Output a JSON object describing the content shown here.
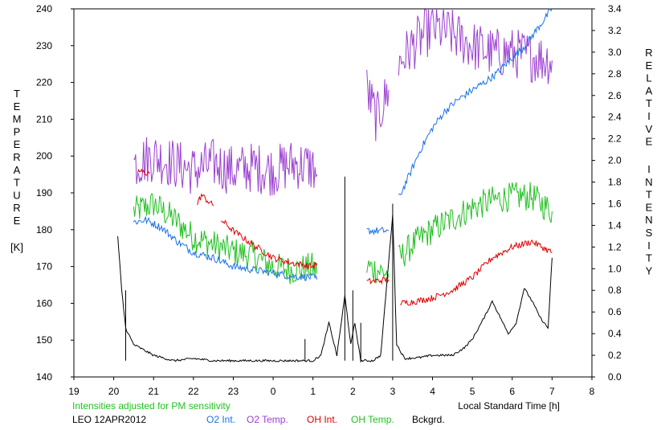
{
  "chart_data": {
    "type": "line",
    "left_axis_letters": [
      "T",
      "E",
      "M",
      "P",
      "E",
      "R",
      "A",
      "T",
      "U",
      "R",
      "E"
    ],
    "left_axis_unit": "[K]",
    "right_axis_letters": [
      "R",
      "E",
      "L",
      "A",
      "T",
      "I",
      "V",
      "E",
      "I",
      "N",
      "T",
      "E",
      "N",
      "S",
      "I",
      "T",
      "Y"
    ],
    "xlabel": "Local Standard Time [h]",
    "note": "Intensities adjusted for PM sensitivity",
    "station": "LEO 12APR2012",
    "xlim": [
      19,
      32
    ],
    "x_tick_values": [
      19,
      20,
      21,
      22,
      23,
      24,
      25,
      26,
      27,
      28,
      29,
      30,
      31,
      32
    ],
    "x_tick_labels": [
      "19",
      "20",
      "21",
      "22",
      "23",
      "0",
      "1",
      "2",
      "3",
      "4",
      "5",
      "6",
      "7",
      "8"
    ],
    "ylim_left": [
      140,
      240
    ],
    "y_left_ticks": [
      140,
      150,
      160,
      170,
      180,
      190,
      200,
      210,
      220,
      230,
      240
    ],
    "ylim_right": [
      0.0,
      3.4
    ],
    "y_right_ticks": [
      "0.0",
      "0.2",
      "0.4",
      "0.6",
      "0.8",
      "1.0",
      "1.2",
      "1.4",
      "1.6",
      "1.8",
      "2.0",
      "2.2",
      "2.4",
      "2.6",
      "2.8",
      "3.0",
      "3.2",
      "3.4"
    ],
    "colors": {
      "o2_int": "#1a73e8",
      "o2_temp": "#9b3fd0",
      "oh_int": "#e00000",
      "oh_temp": "#22c022",
      "bckgrd": "#000000",
      "note": "#22c022"
    },
    "series": [
      {
        "name": "O2 Int.",
        "axis": "right",
        "noise": 0.035,
        "segments": [
          [
            [
              20.5,
              1.43
            ],
            [
              20.8,
              1.45
            ],
            [
              21.2,
              1.38
            ],
            [
              21.6,
              1.25
            ],
            [
              22.0,
              1.15
            ],
            [
              22.5,
              1.1
            ],
            [
              23.0,
              1.02
            ],
            [
              23.5,
              0.99
            ],
            [
              24.0,
              0.96
            ],
            [
              24.5,
              0.93
            ],
            [
              25.0,
              0.92
            ],
            [
              25.1,
              0.9
            ]
          ],
          [
            [
              26.35,
              1.35
            ],
            [
              26.9,
              1.35
            ]
          ],
          [
            [
              27.15,
              1.65
            ],
            [
              27.4,
              1.85
            ],
            [
              27.7,
              2.1
            ],
            [
              28.0,
              2.3
            ],
            [
              28.3,
              2.45
            ],
            [
              28.6,
              2.55
            ],
            [
              29.0,
              2.65
            ],
            [
              29.3,
              2.72
            ],
            [
              29.6,
              2.8
            ],
            [
              30.0,
              2.95
            ],
            [
              30.3,
              3.05
            ],
            [
              30.6,
              3.2
            ],
            [
              30.9,
              3.35
            ],
            [
              31.0,
              3.4
            ]
          ]
        ]
      },
      {
        "name": "O2 Temp.",
        "axis": "left",
        "noise": 7,
        "segments": [
          [
            [
              20.5,
              198
            ],
            [
              21.0,
              200
            ],
            [
              21.5,
              198
            ],
            [
              22.0,
              196
            ],
            [
              22.5,
              198
            ],
            [
              23.0,
              196
            ],
            [
              23.5,
              197
            ],
            [
              24.0,
              196
            ],
            [
              24.5,
              198
            ],
            [
              25.0,
              197
            ],
            [
              25.1,
              195
            ]
          ],
          [
            [
              26.35,
              218
            ],
            [
              26.6,
              210
            ],
            [
              26.9,
              218
            ]
          ],
          [
            [
              27.15,
              225
            ],
            [
              27.5,
              230
            ],
            [
              28.0,
              235
            ],
            [
              28.5,
              233
            ],
            [
              29.0,
              230
            ],
            [
              29.5,
              228
            ],
            [
              30.0,
              228
            ],
            [
              30.5,
              227
            ],
            [
              31.0,
              226
            ]
          ]
        ]
      },
      {
        "name": "OH Int.",
        "axis": "right",
        "noise": 0.03,
        "segments": [
          [
            [
              20.6,
              1.9
            ],
            [
              20.9,
              1.88
            ]
          ],
          [
            [
              22.1,
              1.6
            ],
            [
              22.2,
              1.68
            ],
            [
              22.5,
              1.58
            ]
          ],
          [
            [
              22.7,
              1.45
            ],
            [
              23.0,
              1.35
            ],
            [
              23.5,
              1.22
            ],
            [
              24.0,
              1.1
            ],
            [
              24.5,
              1.05
            ],
            [
              25.0,
              1.02
            ],
            [
              25.1,
              1.05
            ]
          ],
          [
            [
              26.35,
              0.88
            ],
            [
              26.9,
              0.9
            ]
          ],
          [
            [
              27.2,
              0.68
            ],
            [
              27.6,
              0.7
            ],
            [
              28.0,
              0.73
            ],
            [
              28.5,
              0.8
            ],
            [
              29.0,
              0.92
            ],
            [
              29.5,
              1.1
            ],
            [
              30.0,
              1.2
            ],
            [
              30.5,
              1.25
            ],
            [
              31.0,
              1.15
            ]
          ]
        ]
      },
      {
        "name": "OH Temp.",
        "axis": "left",
        "noise": 4,
        "segments": [
          [
            [
              20.5,
              185
            ],
            [
              21.0,
              187
            ],
            [
              21.5,
              183
            ],
            [
              22.0,
              178
            ],
            [
              22.5,
              176
            ],
            [
              23.0,
              174
            ],
            [
              23.5,
              173
            ],
            [
              24.0,
              170
            ],
            [
              24.5,
              169
            ],
            [
              25.0,
              170
            ],
            [
              25.1,
              168
            ]
          ],
          [
            [
              26.35,
              170
            ],
            [
              26.9,
              168
            ]
          ],
          [
            [
              27.15,
              172
            ],
            [
              27.5,
              176
            ],
            [
              28.0,
              180
            ],
            [
              28.5,
              183
            ],
            [
              29.0,
              186
            ],
            [
              29.5,
              188
            ],
            [
              30.0,
              189
            ],
            [
              30.5,
              189
            ],
            [
              31.0,
              185
            ]
          ]
        ]
      },
      {
        "name": "Bckgrd.",
        "axis": "right",
        "noise": 0.01,
        "segments": [
          [
            [
              20.1,
              1.3
            ],
            [
              20.2,
              0.8
            ],
            [
              20.3,
              0.45
            ],
            [
              20.5,
              0.3
            ],
            [
              21.0,
              0.2
            ],
            [
              21.5,
              0.15
            ],
            [
              22.0,
              0.17
            ],
            [
              22.5,
              0.15
            ],
            [
              23.0,
              0.15
            ],
            [
              23.5,
              0.15
            ],
            [
              24.0,
              0.15
            ],
            [
              24.5,
              0.15
            ],
            [
              25.0,
              0.15
            ],
            [
              25.2,
              0.2
            ],
            [
              25.4,
              0.5
            ],
            [
              25.6,
              0.2
            ],
            [
              25.8,
              0.75
            ],
            [
              25.95,
              0.3
            ],
            [
              26.05,
              0.5
            ],
            [
              26.2,
              0.15
            ],
            [
              26.5,
              0.15
            ],
            [
              26.7,
              0.2
            ],
            [
              27.0,
              1.5
            ],
            [
              27.1,
              0.3
            ],
            [
              27.3,
              0.17
            ],
            [
              27.7,
              0.18
            ],
            [
              28.0,
              0.2
            ],
            [
              28.5,
              0.2
            ],
            [
              28.8,
              0.27
            ],
            [
              29.0,
              0.35
            ],
            [
              29.3,
              0.55
            ],
            [
              29.5,
              0.7
            ],
            [
              29.7,
              0.55
            ],
            [
              29.9,
              0.4
            ],
            [
              30.1,
              0.5
            ],
            [
              30.3,
              0.82
            ],
            [
              30.5,
              0.7
            ],
            [
              30.7,
              0.55
            ],
            [
              30.9,
              0.45
            ],
            [
              31.0,
              1.1
            ]
          ]
        ],
        "spikes": [
          [
            20.3,
            0.8
          ],
          [
            24.8,
            0.35
          ],
          [
            25.8,
            1.85
          ],
          [
            26.0,
            0.8
          ],
          [
            26.2,
            0.5
          ],
          [
            27.0,
            1.6
          ]
        ]
      }
    ]
  }
}
